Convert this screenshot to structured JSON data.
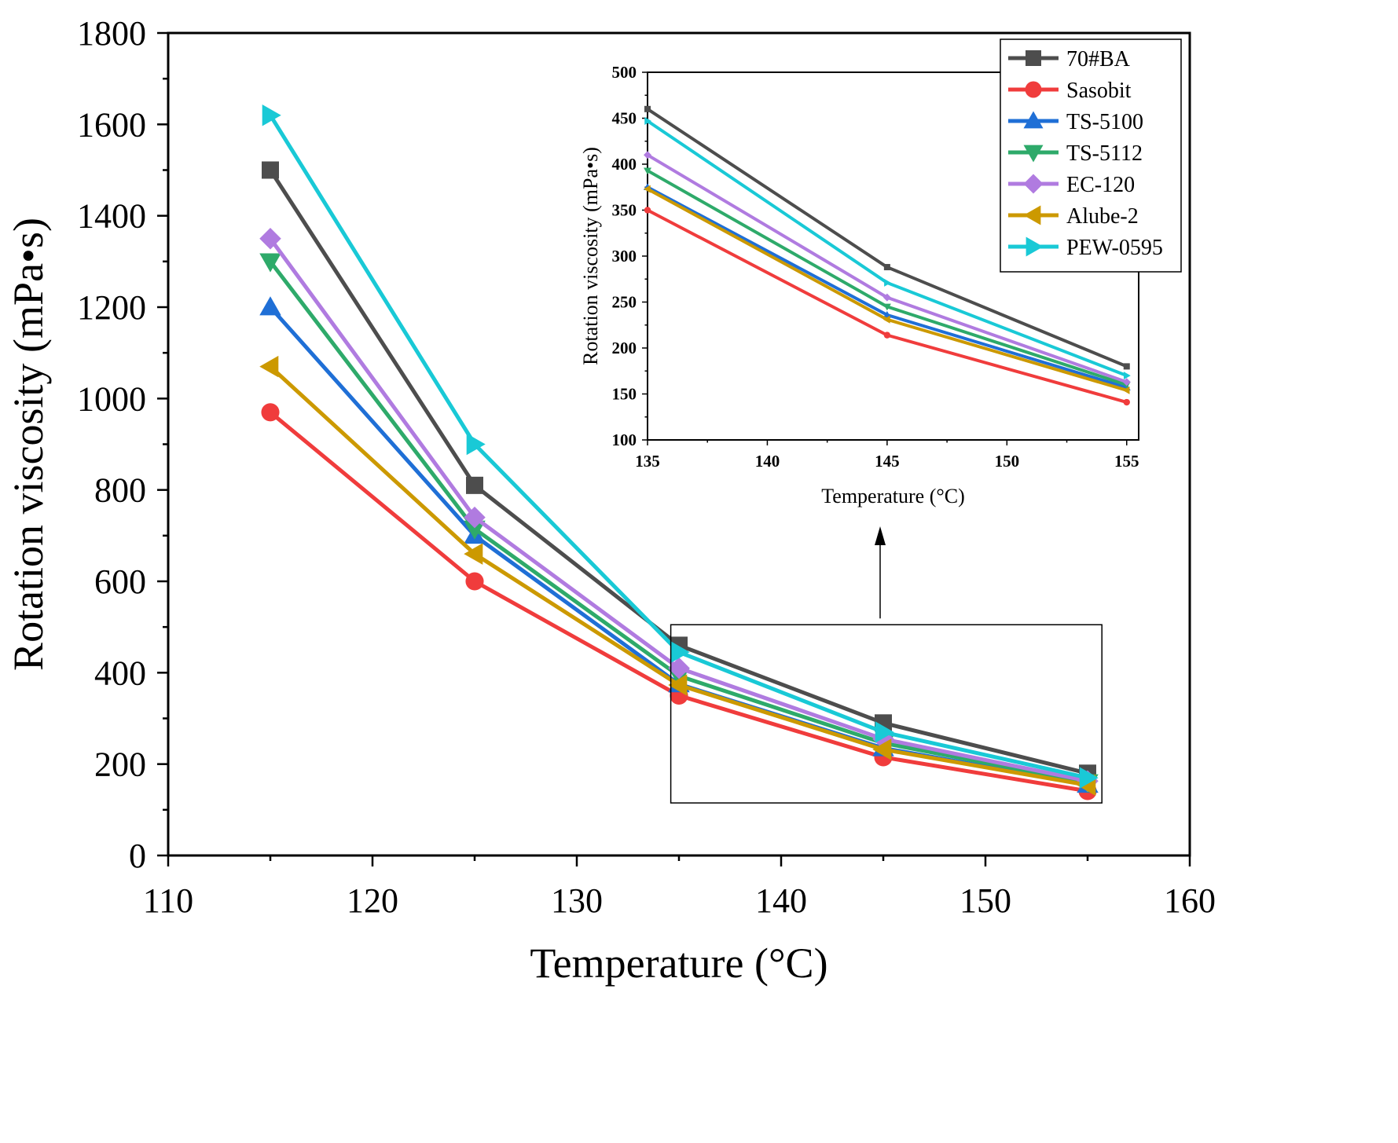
{
  "chart_data": [
    {
      "type": "line",
      "xlabel": "Temperature (°C)",
      "ylabel": "Rotation viscosity (mPa•s)",
      "xlim": [
        110,
        160
      ],
      "ylim": [
        0,
        1800
      ],
      "xticks": [
        110,
        120,
        130,
        140,
        150,
        160
      ],
      "yticks": [
        0,
        200,
        400,
        600,
        800,
        1000,
        1200,
        1400,
        1600,
        1800
      ],
      "x": [
        115,
        125,
        135,
        145,
        155
      ],
      "grid": false,
      "legend": "top-right",
      "series": [
        {
          "name": "70#BA",
          "color": "#4d4d4d",
          "marker": "square",
          "values": [
            1500,
            810,
            460,
            290,
            180
          ]
        },
        {
          "name": "Sasobit",
          "color": "#f03c3c",
          "marker": "circle",
          "values": [
            970,
            600,
            350,
            215,
            141
          ]
        },
        {
          "name": "TS-5100",
          "color": "#1f6fd6",
          "marker": "triangle-up",
          "values": [
            1200,
            700,
            375,
            235,
            155
          ]
        },
        {
          "name": "TS-5112",
          "color": "#2eaa6a",
          "marker": "triangle-down",
          "values": [
            1300,
            715,
            393,
            246,
            160
          ]
        },
        {
          "name": "EC-120",
          "color": "#b07be0",
          "marker": "diamond",
          "values": [
            1350,
            740,
            410,
            255,
            163
          ]
        },
        {
          "name": "Alube-2",
          "color": "#cc9900",
          "marker": "triangle-left",
          "values": [
            1070,
            660,
            373,
            232,
            154
          ]
        },
        {
          "name": "PEW-0595",
          "color": "#19c9d6",
          "marker": "triangle-right",
          "values": [
            1620,
            900,
            445,
            270,
            170
          ]
        }
      ]
    },
    {
      "type": "line",
      "xlabel": "Temperature (°C)",
      "ylabel": "Rotation viscosity (mPa•s)",
      "xlim": [
        135,
        155.5
      ],
      "ylim": [
        100,
        500
      ],
      "xticks": [
        135,
        140,
        145,
        150,
        155
      ],
      "yticks": [
        100,
        150,
        200,
        250,
        300,
        350,
        400,
        450,
        500
      ],
      "x": [
        135,
        145,
        155
      ],
      "grid": false,
      "series": [
        {
          "name": "70#BA",
          "color": "#4d4d4d",
          "marker": "square",
          "values": [
            460,
            288,
            180
          ]
        },
        {
          "name": "Sasobit",
          "color": "#f03c3c",
          "marker": "circle",
          "values": [
            350,
            214,
            141
          ]
        },
        {
          "name": "TS-5100",
          "color": "#1f6fd6",
          "marker": "triangle-up",
          "values": [
            375,
            236,
            157
          ]
        },
        {
          "name": "TS-5112",
          "color": "#2eaa6a",
          "marker": "triangle-down",
          "values": [
            393,
            245,
            160
          ]
        },
        {
          "name": "EC-120",
          "color": "#b07be0",
          "marker": "diamond",
          "values": [
            410,
            255,
            163
          ]
        },
        {
          "name": "Alube-2",
          "color": "#cc9900",
          "marker": "triangle-left",
          "values": [
            373,
            231,
            154
          ]
        },
        {
          "name": "PEW-0595",
          "color": "#19c9d6",
          "marker": "triangle-right",
          "values": [
            447,
            271,
            170
          ]
        }
      ]
    }
  ]
}
